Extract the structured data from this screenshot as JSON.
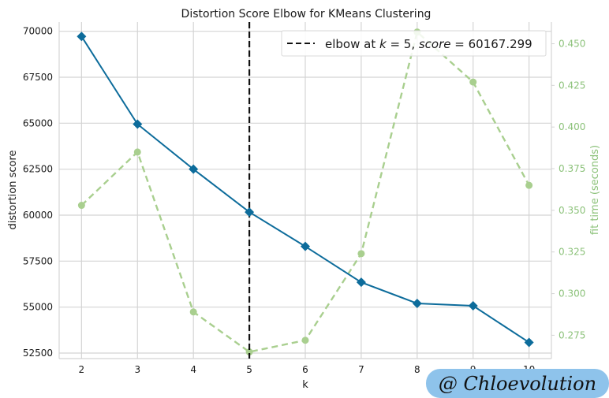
{
  "chart_data": {
    "type": "line",
    "title": "Distortion Score Elbow for KMeans Clustering",
    "xlabel": "k",
    "ylabel": "distortion score",
    "ylabel_right": "fit time (seconds)",
    "x": [
      2,
      3,
      4,
      5,
      6,
      7,
      8,
      9,
      10
    ],
    "xlim": [
      1.6,
      10.4
    ],
    "ylim": [
      52200,
      70500
    ],
    "ylim_right": [
      0.261,
      0.463
    ],
    "yticks": [
      52500,
      55000,
      57500,
      60000,
      62500,
      65000,
      67500,
      70000
    ],
    "yticks_right": [
      "0.275",
      "0.300",
      "0.325",
      "0.350",
      "0.375",
      "0.400",
      "0.425",
      "0.450"
    ],
    "grid": true,
    "legend_placement": "top-right",
    "series": [
      {
        "axis": "left",
        "style": "solid line with diamond markers",
        "color": "#0d6c9b",
        "values": [
          69720,
          64950,
          62500,
          60167,
          58300,
          56350,
          55200,
          55070,
          53080
        ]
      },
      {
        "axis": "right",
        "style": "dashed line with circle markers",
        "color": "#a9cf8f",
        "values": [
          0.353,
          0.385,
          0.289,
          0.265,
          0.272,
          0.324,
          0.457,
          0.427,
          0.365
        ]
      }
    ],
    "elbow": {
      "k": 5,
      "legend_prefix": "elbow at ",
      "legend_k": "k",
      "legend_k_value": " = 5, ",
      "legend_score": "score",
      "legend_score_value": " = 60167.299"
    }
  },
  "watermark": {
    "text": "@ Chloevolution",
    "color": "#8ec3eb"
  }
}
